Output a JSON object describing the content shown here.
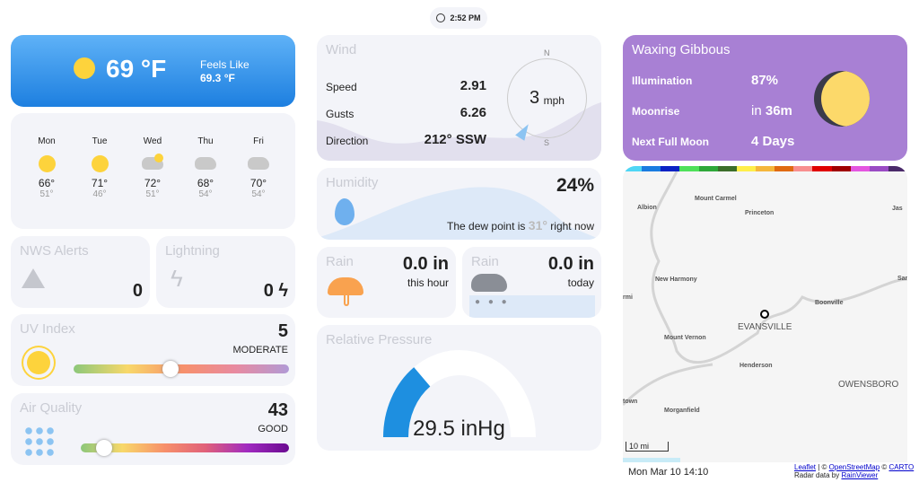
{
  "clock": {
    "icon": "clock-icon",
    "time": "2:52 PM"
  },
  "current": {
    "temp": "69 °F",
    "feels_label": "Feels Like",
    "feels_value": "69.3 °F",
    "icon": "sun-icon"
  },
  "forecast": [
    {
      "day": "Mon",
      "icon": "sun",
      "hi": "66°",
      "lo": "51°"
    },
    {
      "day": "Tue",
      "icon": "sun",
      "hi": "71°",
      "lo": "46°"
    },
    {
      "day": "Wed",
      "icon": "partly-cloudy",
      "hi": "72°",
      "lo": "51°"
    },
    {
      "day": "Thu",
      "icon": "cloudy",
      "hi": "68°",
      "lo": "54°"
    },
    {
      "day": "Fri",
      "icon": "cloudy",
      "hi": "70°",
      "lo": "54°"
    }
  ],
  "alerts": {
    "title": "NWS Alerts",
    "count": "0"
  },
  "lightning": {
    "title": "Lightning",
    "count": "0 ϟ"
  },
  "uv": {
    "title": "UV Index",
    "value": "5",
    "level": "MODERATE",
    "fraction": 0.45
  },
  "aq": {
    "title": "Air Quality",
    "value": "43",
    "level": "GOOD",
    "fraction": 0.11
  },
  "wind": {
    "title": "Wind",
    "speed_label": "Speed",
    "speed": "2.91",
    "gusts_label": "Gusts",
    "gusts": "6.26",
    "dir_label": "Direction",
    "dir": "212° SSW",
    "compass_speed": "3",
    "unit": "mph",
    "n": "N",
    "s": "S",
    "bearing": 212
  },
  "humidity": {
    "title": "Humidity",
    "value": "24%",
    "dew_pre": "The dew point is",
    "dew": "31°",
    "dew_post": "right now"
  },
  "rain_hour": {
    "title": "Rain",
    "value": "0.0 in",
    "period": "this hour"
  },
  "rain_day": {
    "title": "Rain",
    "value": "0.0 in",
    "period": "today"
  },
  "pressure": {
    "title": "Relative Pressure",
    "value": "29.5 inHg",
    "fraction": 0.3
  },
  "moon": {
    "title": "Waxing Gibbous",
    "illum_label": "Illumination",
    "illum": "87%",
    "rise_label": "Moonrise",
    "rise_pre": "in",
    "rise": "36m",
    "full_label": "Next Full Moon",
    "full": "4 Days",
    "color": "#a880d4"
  },
  "map": {
    "places": [
      "Mount Carmel",
      "Albion",
      "Princeton",
      "New Harmony",
      "Boonville",
      "EVANSVILLE",
      "Mount Vernon",
      "Henderson",
      "OWENSBORO",
      "Morganfield",
      "Jas",
      "San",
      "rmi",
      "town"
    ],
    "scale": "10 mi",
    "timestamp": "Mon Mar 10 14:10",
    "attr_leaflet": "Leaflet",
    "attr_sep": " | © ",
    "attr_osm": "OpenStreetMap",
    "attr_sep2": " © ",
    "attr_carto": "CARTO",
    "radar_pre": "Radar data by ",
    "radar_link": "RainViewer",
    "legend_colors": [
      "#4fd6f5",
      "#1a7ce0",
      "#0b22c4",
      "#4fe05a",
      "#2fa83a",
      "#3c6e2b",
      "#ffee4a",
      "#f5b63c",
      "#e06a12",
      "#f88f8f",
      "#e00000",
      "#a00000",
      "#e456e0",
      "#9a4bc4",
      "#4a2a6a"
    ]
  }
}
